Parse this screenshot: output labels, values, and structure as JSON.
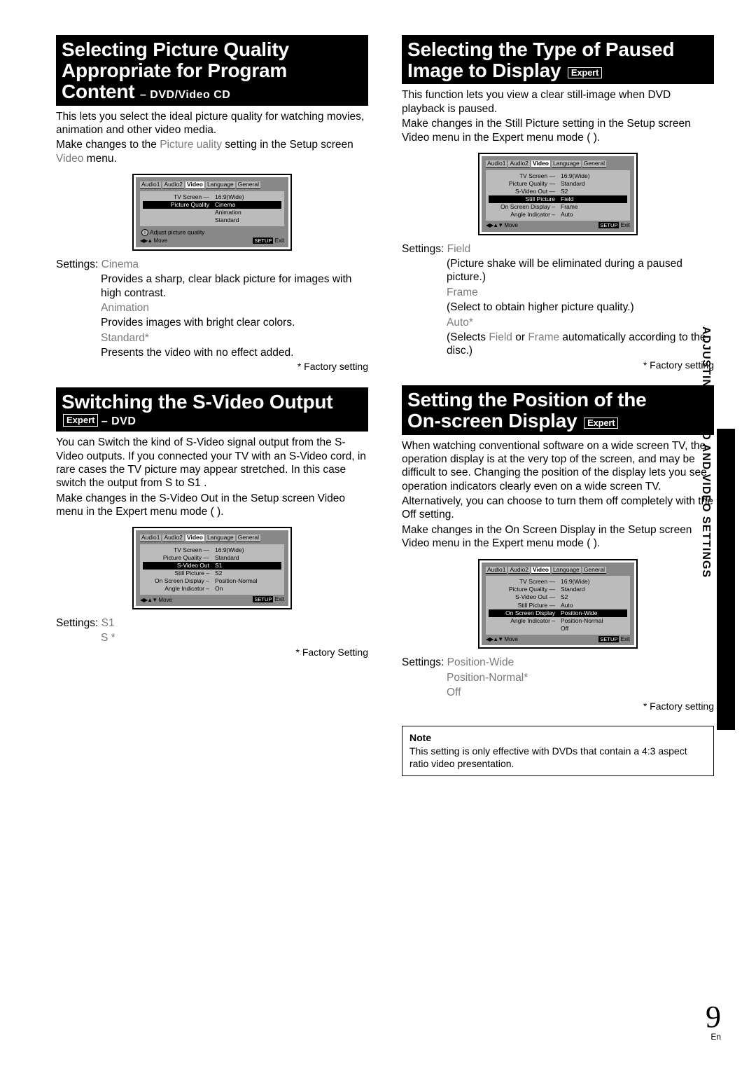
{
  "sidebar_label": "ADJUSTING AUDIO AND VIDEO SETTINGS",
  "page_number": "9",
  "page_lang": "En",
  "badges": {
    "expert": "Expert"
  },
  "tabs": [
    "Audio1",
    "Audio2",
    "Video",
    "Language",
    "General"
  ],
  "osd_common": {
    "move_arrows4": "◀▶▲▼",
    "move_arrows3": "◀▶▲",
    "move": "Move",
    "setup": "SETUP",
    "exit": "Exit"
  },
  "left": {
    "sec1": {
      "title_l1": "Selecting Picture Quality",
      "title_l2": "Appropriate for Program",
      "title_l3": "Content",
      "title_sub": "– DVD/Video CD",
      "para1": "This lets you select the ideal picture quality for watching movies, animation and other video media.",
      "para2a": "Make changes to the ",
      "para2b": "Picture   uality",
      "para2c": " setting in the Setup screen ",
      "para2d": "Video",
      "para2e": " menu.",
      "osd": {
        "rows": [
          {
            "l": "TV Screen —",
            "r": "16:9(Wide)"
          },
          {
            "l": "Picture Quality",
            "r": "Cinema",
            "sel": true
          }
        ],
        "opts": [
          "Animation",
          "Standard"
        ],
        "hint": "Adjust picture quality"
      },
      "settings_label": "Settings:",
      "s1": "Cinema",
      "s1d": "Provides a sharp, clear black picture for images with high contrast.",
      "s2": "Animation",
      "s2d": "Provides images with bright clear colors.",
      "s3": "Standard*",
      "s3d": "Presents the video with no effect added.",
      "foot": "* Factory setting"
    },
    "sec2": {
      "title": "Switching the S-Video Output",
      "sub": "– DVD",
      "para1": "You can Switch the kind of S-Video signal output from the S-Video outputs. If you connected your TV with an S-Video cord, in rare cases the TV picture may appear stretched. In this case switch the output from   S   to  S1 .",
      "para2": "Make changes in the  S-Video Out   in the Setup screen Video  menu in the  Expert   menu mode (            ).",
      "osd": {
        "rows": [
          {
            "l": "TV Screen —",
            "r": "16:9(Wide)"
          },
          {
            "l": "Picture Quality —",
            "r": "Standard"
          },
          {
            "l": "S-Video Out",
            "r": "S1",
            "sel": true
          },
          {
            "l": "Still Picture –",
            "r": "S2"
          },
          {
            "l": "On Screen Display –",
            "r": "Position-Normal"
          },
          {
            "l": "Angle Indicator –",
            "r": "On"
          }
        ]
      },
      "settings_label": "Settings:",
      "s1": "S1",
      "s2": "S  *",
      "foot": "* Factory Setting"
    }
  },
  "right": {
    "sec1": {
      "title_l1": "Selecting the Type of Paused",
      "title_l2": "Image to Display",
      "para1": "This function lets you view a clear still-image when DVD playback is paused.",
      "para2": "Make changes in the  Still Picture    setting in the Setup screen  Video   menu in the   Expert    menu mode (          ).",
      "osd": {
        "rows": [
          {
            "l": "TV Screen —",
            "r": "16:9(Wide)"
          },
          {
            "l": "Picture Quality —",
            "r": "Standard"
          },
          {
            "l": "S-Video Out —",
            "r": "S2"
          },
          {
            "l": "Still Picture",
            "r": "Field",
            "sel": true
          },
          {
            "l": "On Screen Display –",
            "r": "Frame"
          },
          {
            "l": "Angle Indicator –",
            "r": "Auto"
          }
        ]
      },
      "settings_label": "Settings:",
      "s1": "Field",
      "s1d": "(Picture shake will be eliminated during a paused picture.)",
      "s2": "Frame",
      "s2d": "(Select to obtain higher picture quality.)",
      "s3": "Auto*",
      "s3d_a": "(Selects ",
      "s3d_b": "Field",
      "s3d_c": " or ",
      "s3d_d": "Frame",
      "s3d_e": " automatically according to the disc.)",
      "foot": "* Factory setting"
    },
    "sec2": {
      "title_l1": "Setting the Position of the",
      "title_l2": "On-screen Display",
      "para1": "When watching conventional software on a wide screen TV, the operation display is at the very top of the screen, and may be difficult to see. Changing the position of the display lets you see operation indicators clearly even on a wide screen TV.",
      "para2": "Alternatively, you can choose to turn them off completely with the  Off  setting.",
      "para3": "Make changes in the  On Screen Display   in the Setup screen  Video  menu in the  Expert   menu mode (          ).",
      "osd": {
        "rows": [
          {
            "l": "TV Screen —",
            "r": "16:9(Wide)"
          },
          {
            "l": "Picture Quality —",
            "r": "Standard"
          },
          {
            "l": "S-Video Out —",
            "r": "S2"
          },
          {
            "l": "Still Picture —",
            "r": "Auto"
          },
          {
            "l": "On Screen Display",
            "r": "Position-Wide",
            "sel": true
          },
          {
            "l": "Angle Indicator –",
            "r": "Position-Normal"
          }
        ],
        "opt_extra": "Off"
      },
      "settings_label": "Settings:",
      "s1": "Position-Wide",
      "s2": "Position-Normal*",
      "s3": "Off",
      "foot": "* Factory setting",
      "note_title": "Note",
      "note_body": "This setting is only effective with DVDs that contain a 4:3 aspect ratio video presentation."
    }
  }
}
